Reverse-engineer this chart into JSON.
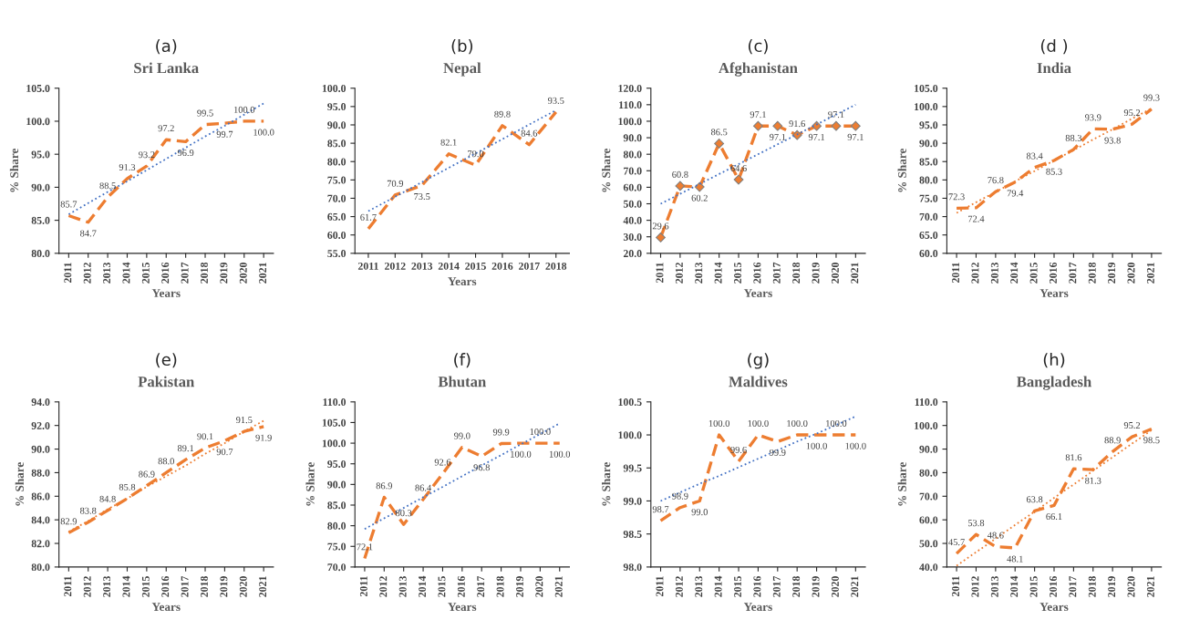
{
  "chart_data": [
    {
      "type": "line",
      "title": "Sri Lanka",
      "annotations": [
        "(a)"
      ],
      "xlabel": "Years",
      "ylabel": "% Share",
      "categories": [
        "2011",
        "2012",
        "2013",
        "2014",
        "2015",
        "2016",
        "2017",
        "2018",
        "2019",
        "2020",
        "2021"
      ],
      "ylim": [
        80,
        105
      ],
      "yticks": [
        {
          "value": 80,
          "label": "80.0"
        },
        {
          "value": 85,
          "label": "85.0"
        },
        {
          "value": 90,
          "label": "90.0"
        },
        {
          "value": 95,
          "label": "95.0"
        },
        {
          "value": 100,
          "label": "100.0"
        },
        {
          "value": 105,
          "label": "105.0"
        }
      ],
      "series": [
        {
          "color": "#ed7d31",
          "line_style": "dashed",
          "values": [
            85.7,
            84.7,
            88.5,
            91.3,
            93.2,
            97.2,
            96.9,
            99.5,
            99.7,
            100.0,
            100.0
          ],
          "value_labels": [
            "85.7",
            "84.7",
            "88.5",
            "91.3",
            "93.2",
            "97.2",
            "96.9",
            "99.5",
            "99.7",
            "100.0",
            "100.0"
          ]
        },
        {
          "type": "line",
          "color": "#4472c4",
          "line_style": "dotted",
          "values": [
            85.9,
            87.6,
            89.3,
            90.9,
            92.6,
            94.3,
            96.0,
            97.7,
            99.3,
            101.0,
            102.7
          ]
        }
      ]
    },
    {
      "type": "line",
      "title": "Nepal",
      "annotations": [
        "(b)"
      ],
      "xlabel": "Years",
      "categories": [
        "2011",
        "2012",
        "2013",
        "2014",
        "2015",
        "2016",
        "2017",
        "2018"
      ],
      "ylim": [
        55,
        100
      ],
      "yticks": [
        {
          "value": 55,
          "label": "55.0"
        },
        {
          "value": 60,
          "label": "60.0"
        },
        {
          "value": 65,
          "label": "65.0"
        },
        {
          "value": 70,
          "label": "70.0"
        },
        {
          "value": 75,
          "label": "75.0"
        },
        {
          "value": 80,
          "label": "80.0"
        },
        {
          "value": 85,
          "label": "85.0"
        },
        {
          "value": 90,
          "label": "90.0"
        },
        {
          "value": 95,
          "label": "95.0"
        },
        {
          "value": 100,
          "label": "100.0"
        }
      ],
      "series": [
        {
          "color": "#ed7d31",
          "line_style": "dashed",
          "values": [
            61.7,
            70.9,
            73.5,
            82.1,
            79.0,
            89.8,
            84.6,
            93.5
          ],
          "value_labels": [
            "61.7",
            "70.9",
            "73.5",
            "82.1",
            "79.0",
            "89.8",
            "84.6",
            "93.5"
          ]
        },
        {
          "type": "line",
          "color": "#4472c4",
          "line_style": "dotted",
          "values": [
            66.5,
            70.4,
            74.4,
            78.3,
            82.2,
            86.1,
            90.1,
            94.0
          ]
        }
      ]
    },
    {
      "type": "line",
      "title": "Afghanistan",
      "annotations": [
        "(c)"
      ],
      "xlabel": "Years",
      "ylabel": "% Share",
      "categories": [
        "2011",
        "2012",
        "2013",
        "2014",
        "2015",
        "2016",
        "2017",
        "2018",
        "2019",
        "2020",
        "2021"
      ],
      "ylim": [
        20,
        120
      ],
      "yticks": [
        {
          "value": 20,
          "label": "20.0"
        },
        {
          "value": 30,
          "label": "30.0"
        },
        {
          "value": 40,
          "label": "40.0"
        },
        {
          "value": 50,
          "label": "50.0"
        },
        {
          "value": 60,
          "label": "60.0"
        },
        {
          "value": 70,
          "label": "70.0"
        },
        {
          "value": 80,
          "label": "80.0"
        },
        {
          "value": 90,
          "label": "90.0"
        },
        {
          "value": 100,
          "label": "100.0"
        },
        {
          "value": 110,
          "label": "110.0"
        },
        {
          "value": 120,
          "label": "120.0"
        }
      ],
      "series": [
        {
          "color": "#ed7d31",
          "line_style": "dashed",
          "marker": "diamond",
          "values": [
            29.6,
            60.8,
            60.2,
            86.5,
            64.6,
            97.1,
            97.1,
            91.6,
            97.1,
            97.1,
            97.1
          ],
          "value_labels": [
            "29.6",
            "60.8",
            "60.2",
            "86.5",
            "64.6",
            "97.1",
            "97.1",
            "91.6",
            "97.1",
            "97.1",
            "97.1"
          ]
        },
        {
          "type": "line",
          "color": "#4472c4",
          "line_style": "dotted",
          "values": [
            50,
            56,
            62,
            68,
            74,
            80,
            86,
            92,
            98,
            104,
            110
          ]
        }
      ]
    },
    {
      "type": "line",
      "title": "India",
      "annotations": [
        "(d )"
      ],
      "xlabel": "Years",
      "ylabel": "% Share",
      "categories": [
        "2011",
        "2012",
        "2013",
        "2014",
        "2015",
        "2016",
        "2017",
        "2018",
        "2019",
        "2020",
        "2021"
      ],
      "ylim": [
        60,
        105
      ],
      "yticks": [
        {
          "value": 60,
          "label": "60.0"
        },
        {
          "value": 65,
          "label": "65.0"
        },
        {
          "value": 70,
          "label": "70.0"
        },
        {
          "value": 75,
          "label": "75.0"
        },
        {
          "value": 80,
          "label": "80.0"
        },
        {
          "value": 85,
          "label": "85.0"
        },
        {
          "value": 90,
          "label": "90.0"
        },
        {
          "value": 95,
          "label": "95.0"
        },
        {
          "value": 100,
          "label": "100.0"
        },
        {
          "value": 105,
          "label": "105.0"
        }
      ],
      "series": [
        {
          "color": "#ed7d31",
          "line_style": "dashed",
          "values": [
            72.3,
            72.4,
            76.8,
            79.4,
            83.4,
            85.3,
            88.3,
            93.9,
            93.8,
            95.2,
            99.3
          ],
          "value_labels": [
            "72.3",
            "72.4",
            "76.8",
            "79.4",
            "83.4",
            "85.3",
            "88.3",
            "93.9",
            "93.8",
            "95.2",
            "99.3"
          ]
        },
        {
          "type": "line",
          "color": "#ed7d31",
          "line_style": "dotted",
          "values": [
            71.0,
            73.9,
            76.7,
            79.6,
            82.4,
            85.3,
            88.1,
            91.0,
            93.8,
            96.7,
            99.5
          ]
        }
      ]
    },
    {
      "type": "line",
      "title": "Pakistan",
      "annotations": [
        "(e)"
      ],
      "xlabel": "Years",
      "ylabel": "% Share",
      "categories": [
        "2011",
        "2012",
        "2013",
        "2014",
        "2015",
        "2016",
        "2017",
        "2018",
        "2019",
        "2020",
        "2021"
      ],
      "ylim": [
        80,
        94
      ],
      "yticks": [
        {
          "value": 80,
          "label": "80.0"
        },
        {
          "value": 82,
          "label": "82.0"
        },
        {
          "value": 84,
          "label": "84.0"
        },
        {
          "value": 86,
          "label": "86.0"
        },
        {
          "value": 88,
          "label": "88.0"
        },
        {
          "value": 90,
          "label": "90.0"
        },
        {
          "value": 92,
          "label": "92.0"
        },
        {
          "value": 94,
          "label": "94.0"
        }
      ],
      "series": [
        {
          "color": "#ed7d31",
          "line_style": "dashed",
          "values": [
            82.9,
            83.8,
            84.8,
            85.8,
            86.9,
            88.0,
            89.1,
            90.1,
            90.7,
            91.5,
            91.9
          ],
          "value_labels": [
            "82.9",
            "83.8",
            "84.8",
            "85.8",
            "86.9",
            "88.0",
            "89.1",
            "90.1",
            "90.7",
            "91.5",
            "91.9"
          ]
        },
        {
          "type": "line",
          "color": "#ed7d31",
          "line_style": "dotted",
          "values": [
            83.0,
            83.9,
            84.9,
            85.8,
            86.8,
            87.7,
            88.6,
            89.6,
            90.5,
            91.5,
            92.4
          ]
        }
      ]
    },
    {
      "type": "line",
      "title": "Bhutan",
      "annotations": [
        "(f)"
      ],
      "xlabel": "Years",
      "ylabel": "% Share",
      "categories": [
        "2011",
        "2012",
        "2013",
        "2014",
        "2015",
        "2016",
        "2017",
        "2018",
        "2019",
        "2020",
        "2021"
      ],
      "ylim": [
        70,
        110
      ],
      "yticks": [
        {
          "value": 70,
          "label": "70.0"
        },
        {
          "value": 75,
          "label": "75.0"
        },
        {
          "value": 80,
          "label": "80.0"
        },
        {
          "value": 85,
          "label": "85.0"
        },
        {
          "value": 90,
          "label": "90.0"
        },
        {
          "value": 95,
          "label": "95.0"
        },
        {
          "value": 100,
          "label": "100.0"
        },
        {
          "value": 105,
          "label": "105.0"
        },
        {
          "value": 110,
          "label": "110.0"
        }
      ],
      "series": [
        {
          "color": "#ed7d31",
          "line_style": "dashed",
          "values": [
            72.1,
            86.9,
            80.3,
            86.4,
            92.6,
            99.0,
            96.8,
            99.9,
            100.0,
            100.0,
            100.0
          ],
          "value_labels": [
            "72.1",
            "86.9",
            "80.3",
            "86.4",
            "92.6",
            "99.0",
            "96.8",
            "99.9",
            "100.0",
            "100.0",
            "100.0"
          ]
        },
        {
          "type": "line",
          "color": "#4472c4",
          "line_style": "dotted",
          "values": [
            79.2,
            81.8,
            84.3,
            86.9,
            89.4,
            92.0,
            94.6,
            97.1,
            99.7,
            102.2,
            104.8
          ]
        }
      ]
    },
    {
      "type": "line",
      "title": "Maldives",
      "annotations": [
        "(g)"
      ],
      "xlabel": "Years",
      "ylabel": "% Share",
      "categories": [
        "2011",
        "2012",
        "2013",
        "2014",
        "2015",
        "2016",
        "2017",
        "2018",
        "2019",
        "2020",
        "2021"
      ],
      "ylim": [
        98,
        100.5
      ],
      "yticks": [
        {
          "value": 98,
          "label": "98.0"
        },
        {
          "value": 98.5,
          "label": "98.5"
        },
        {
          "value": 99,
          "label": "99.0"
        },
        {
          "value": 99.5,
          "label": "99.5"
        },
        {
          "value": 100,
          "label": "100.0"
        },
        {
          "value": 100.5,
          "label": "100.5"
        }
      ],
      "series": [
        {
          "color": "#ed7d31",
          "line_style": "dashed",
          "values": [
            98.7,
            98.9,
            99.0,
            100.0,
            99.6,
            100.0,
            99.9,
            100.0,
            100.0,
            100.0,
            100.0
          ],
          "value_labels": [
            "98.7",
            "98.9",
            "99.0",
            "100.0",
            "99.6",
            "100.0",
            "99.9",
            "100.0",
            "100.0",
            "100.0",
            "100.0"
          ]
        },
        {
          "type": "line",
          "color": "#4472c4",
          "line_style": "dotted",
          "values": [
            99.0,
            99.13,
            99.26,
            99.38,
            99.51,
            99.64,
            99.77,
            99.9,
            100.02,
            100.15,
            100.28
          ]
        }
      ]
    },
    {
      "type": "line",
      "title": "Bangladesh",
      "annotations": [
        "(h)"
      ],
      "xlabel": "Years",
      "ylabel": "% Share",
      "categories": [
        "2011",
        "2012",
        "2013",
        "2014",
        "2015",
        "2016",
        "2017",
        "2018",
        "2019",
        "2020",
        "2021"
      ],
      "ylim": [
        40,
        110
      ],
      "yticks": [
        {
          "value": 40,
          "label": "40.0"
        },
        {
          "value": 50,
          "label": "50.0"
        },
        {
          "value": 60,
          "label": "60.0"
        },
        {
          "value": 70,
          "label": "70.0"
        },
        {
          "value": 80,
          "label": "80.0"
        },
        {
          "value": 90,
          "label": "90.0"
        },
        {
          "value": 100,
          "label": "100.0"
        },
        {
          "value": 110,
          "label": "110.0"
        }
      ],
      "series": [
        {
          "color": "#ed7d31",
          "line_style": "dashed",
          "values": [
            45.7,
            53.8,
            48.6,
            48.1,
            63.8,
            66.1,
            81.6,
            81.3,
            88.9,
            95.2,
            98.5
          ],
          "value_labels": [
            "45.7",
            "53.8",
            "48.6",
            "48.1",
            "63.8",
            "66.1",
            "81.6",
            "81.3",
            "88.9",
            "95.2",
            "98.5"
          ]
        },
        {
          "type": "line",
          "color": "#ed7d31",
          "line_style": "dotted",
          "values": [
            40.5,
            46.3,
            52.0,
            57.8,
            63.5,
            69.3,
            75.0,
            80.8,
            86.5,
            92.3,
            98.0
          ]
        }
      ]
    }
  ]
}
